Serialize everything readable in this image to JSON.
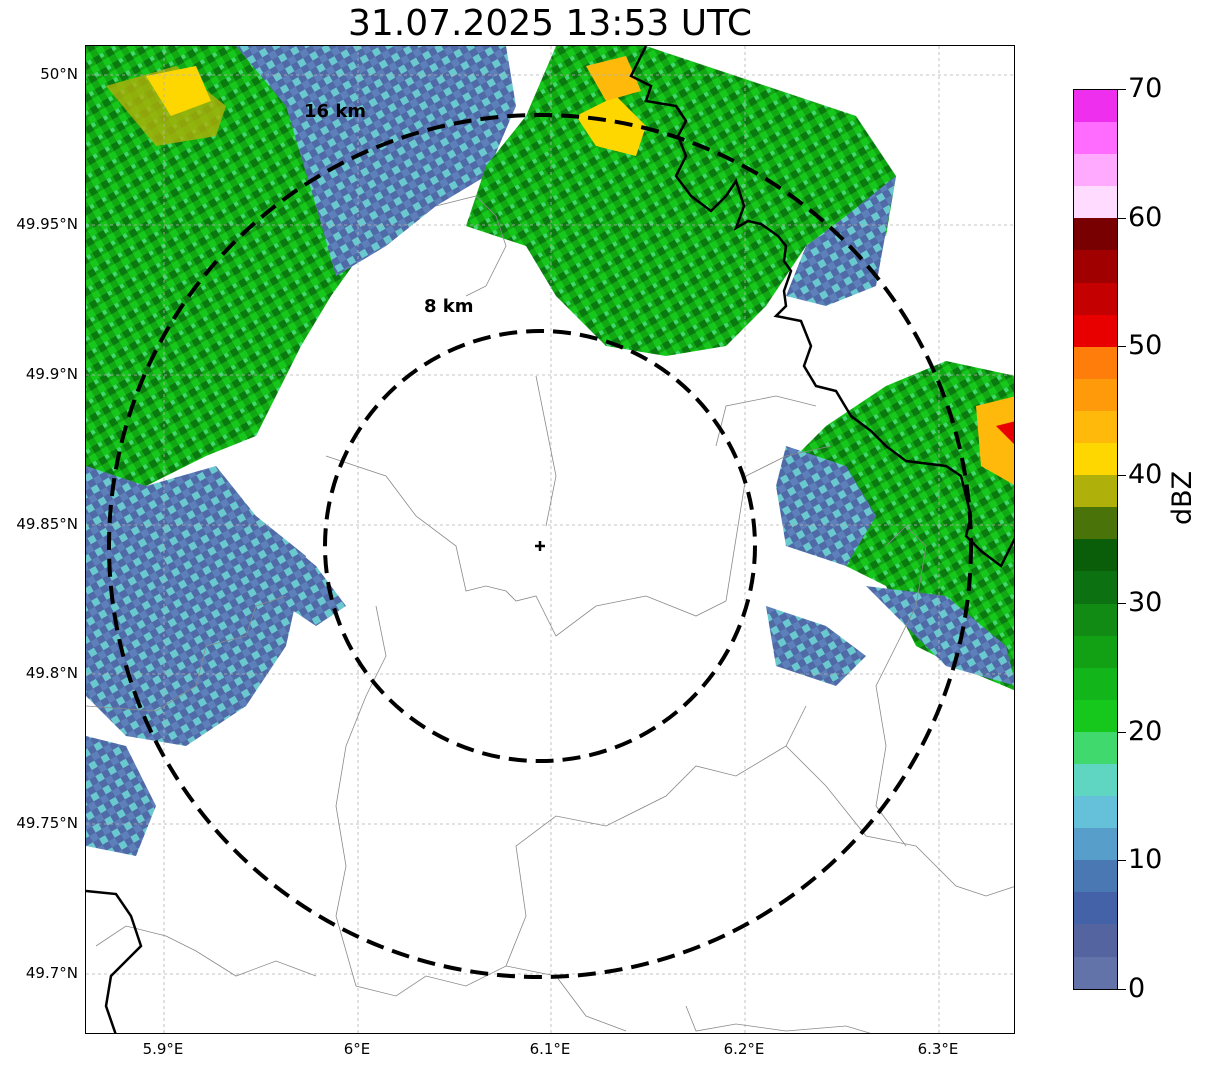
{
  "title": "31.07.2025 13:53 UTC",
  "axes": {
    "x_ticks": [
      "5.9°E",
      "6°E",
      "6.1°E",
      "6.2°E",
      "6.3°E"
    ],
    "y_ticks": [
      "50°N",
      "49.95°N",
      "49.9°N",
      "49.85°N",
      "49.8°N",
      "49.75°N",
      "49.7°N"
    ]
  },
  "range_rings": [
    {
      "label": "8 km",
      "radius_km": 8
    },
    {
      "label": "16 km",
      "radius_km": 16
    }
  ],
  "colorbar": {
    "label": "dBZ",
    "min": 0,
    "max": 70,
    "tick_labels": [
      "70",
      "60",
      "50",
      "40",
      "30",
      "20",
      "10",
      "0"
    ],
    "colors": [
      "#6173a8",
      "#5364a0",
      "#4462a7",
      "#4a78b2",
      "#579fca",
      "#65c1d9",
      "#5fd6c2",
      "#3fd96e",
      "#16c81c",
      "#12b51a",
      "#12a014",
      "#118b13",
      "#0c7211",
      "#0a5e0a",
      "#4a740a",
      "#b0b00a",
      "#ffd700",
      "#ffb90a",
      "#ff9b0a",
      "#ff7d0a",
      "#e80000",
      "#c40000",
      "#a00000",
      "#780000",
      "#ffdcff",
      "#ffaaff",
      "#ff6cff",
      "#ee30ee"
    ]
  },
  "chart_data": {
    "type": "heatmap",
    "title": "31.07.2025 13:53 UTC",
    "xlabel": "",
    "ylabel": "",
    "xlim": [
      5.86,
      6.34
    ],
    "ylim": [
      49.68,
      50.01
    ],
    "radar_center": {
      "lon": 6.095,
      "lat": 49.843
    },
    "range_rings_km": [
      8,
      16
    ],
    "colorbar_range_dBZ": [
      0,
      70
    ],
    "grid": true
  }
}
